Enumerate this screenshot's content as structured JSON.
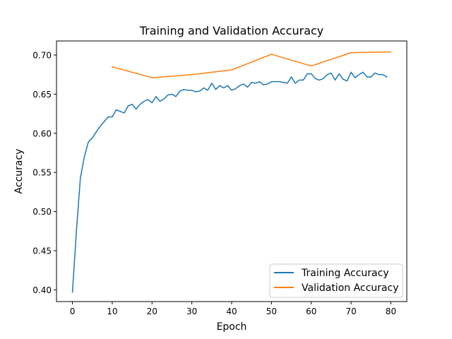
{
  "chart_data": {
    "type": "line",
    "title": "Training and Validation Accuracy",
    "xlabel": "Epoch",
    "ylabel": "Accuracy",
    "xlim": [
      -4,
      84
    ],
    "ylim": [
      0.385,
      0.718
    ],
    "xticks": [
      0,
      10,
      20,
      30,
      40,
      50,
      60,
      70,
      80
    ],
    "yticks": [
      0.4,
      0.45,
      0.5,
      0.55,
      0.6,
      0.65,
      0.7
    ],
    "ytick_labels": [
      "0.40",
      "0.45",
      "0.50",
      "0.55",
      "0.60",
      "0.65",
      "0.70"
    ],
    "grid": false,
    "legend": "lower-right",
    "series": [
      {
        "name": "Training Accuracy",
        "color": "#1f77b4",
        "x": [
          0,
          1,
          2,
          3,
          4,
          5,
          6,
          7,
          8,
          9,
          10,
          11,
          12,
          13,
          14,
          15,
          16,
          17,
          18,
          19,
          20,
          21,
          22,
          23,
          24,
          25,
          26,
          27,
          28,
          29,
          30,
          31,
          32,
          33,
          34,
          35,
          36,
          37,
          38,
          39,
          40,
          41,
          42,
          43,
          44,
          45,
          46,
          47,
          48,
          49,
          50,
          51,
          52,
          53,
          54,
          55,
          56,
          57,
          58,
          59,
          60,
          61,
          62,
          63,
          64,
          65,
          66,
          67,
          68,
          69,
          70,
          71,
          72,
          73,
          74,
          75,
          76,
          77,
          78,
          79
        ],
        "values": [
          0.397,
          0.475,
          0.543,
          0.57,
          0.589,
          0.594,
          0.602,
          0.609,
          0.615,
          0.621,
          0.621,
          0.63,
          0.628,
          0.626,
          0.635,
          0.637,
          0.631,
          0.637,
          0.641,
          0.643,
          0.639,
          0.647,
          0.641,
          0.644,
          0.649,
          0.65,
          0.647,
          0.654,
          0.656,
          0.655,
          0.655,
          0.653,
          0.654,
          0.658,
          0.655,
          0.664,
          0.656,
          0.661,
          0.658,
          0.661,
          0.655,
          0.657,
          0.661,
          0.663,
          0.659,
          0.665,
          0.664,
          0.666,
          0.662,
          0.663,
          0.666,
          0.666,
          0.666,
          0.665,
          0.664,
          0.672,
          0.664,
          0.668,
          0.668,
          0.676,
          0.676,
          0.67,
          0.668,
          0.67,
          0.675,
          0.677,
          0.668,
          0.676,
          0.669,
          0.667,
          0.678,
          0.671,
          0.675,
          0.678,
          0.672,
          0.672,
          0.677,
          0.675,
          0.675,
          0.672
        ]
      },
      {
        "name": "Validation Accuracy",
        "color": "#ff7f0e",
        "x": [
          10,
          20,
          30,
          40,
          50,
          60,
          70,
          80
        ],
        "values": [
          0.685,
          0.671,
          0.675,
          0.681,
          0.701,
          0.686,
          0.703,
          0.704
        ]
      }
    ]
  }
}
